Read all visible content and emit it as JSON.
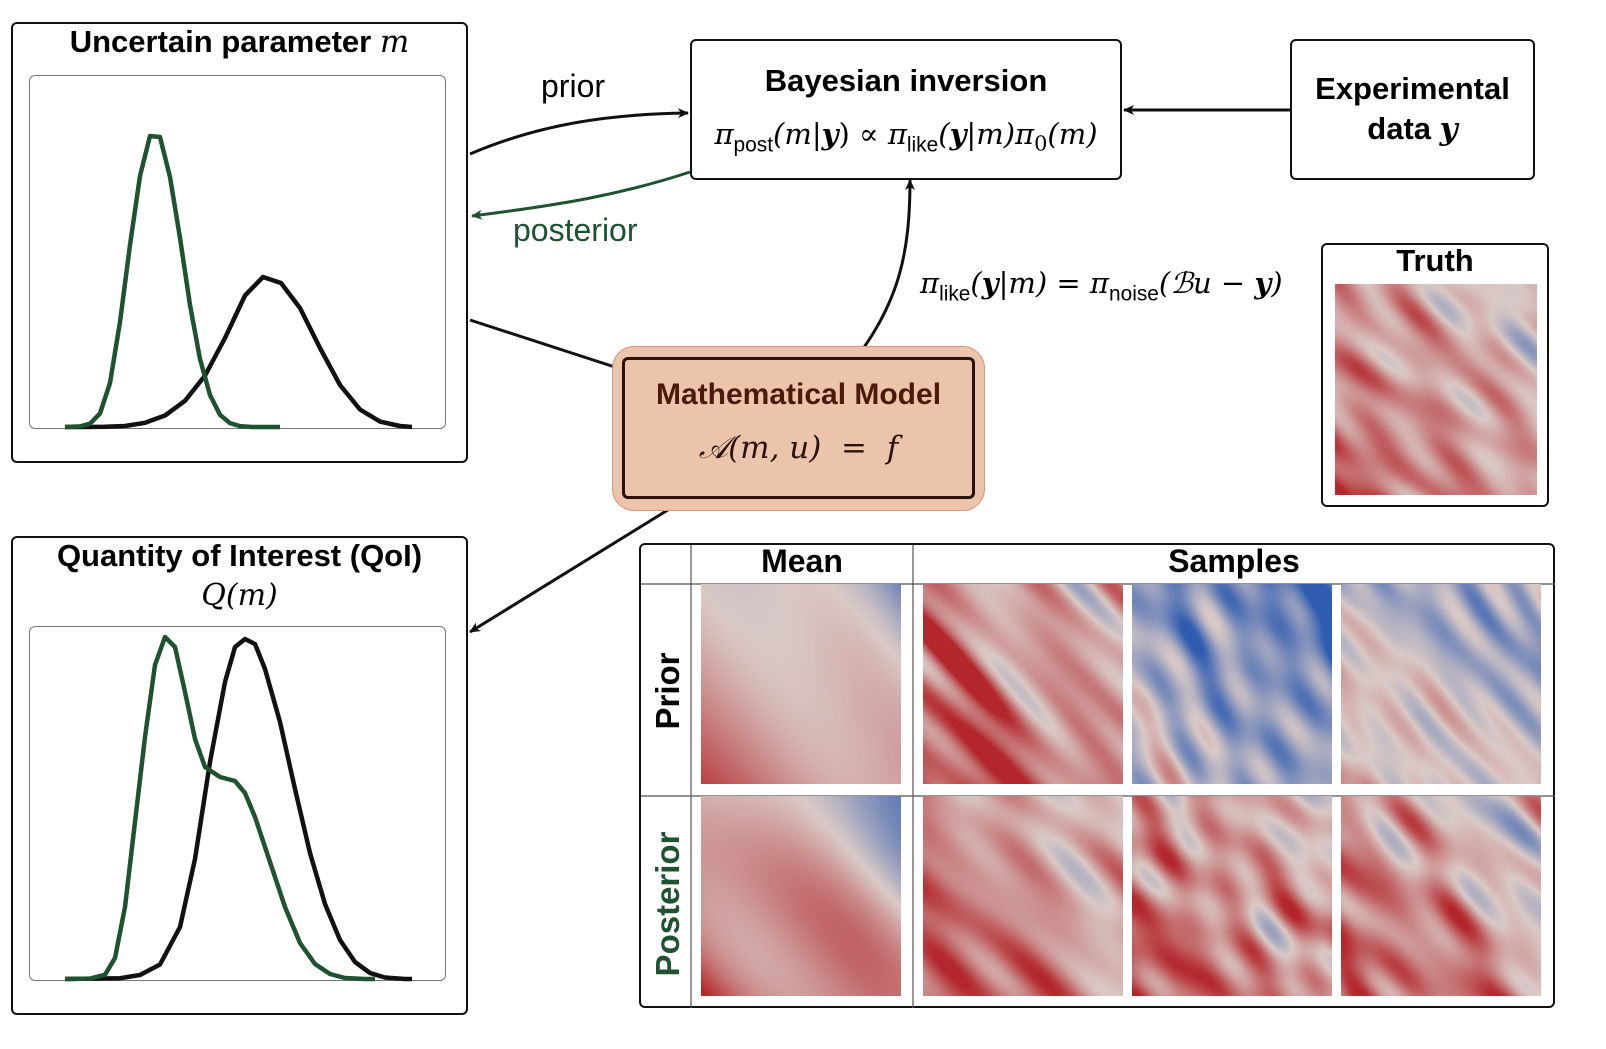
{
  "uncertain_panel": {
    "title_text": "Uncertain parameter",
    "title_symbol": "m"
  },
  "qoi_panel": {
    "title_text": "Quantity of Interest (QoI)",
    "subtitle": "Q(m)"
  },
  "bayes_box": {
    "title": "Bayesian inversion",
    "formula": {
      "pi1": "π",
      "sub1": "post",
      "a1": "(m|",
      "y1": "y",
      "b1": ") ∝ ",
      "pi2": "π",
      "sub2": "like",
      "a2": "(",
      "y2": "y",
      "b2": "|m)π",
      "sub3": "0",
      "c3": "(m)"
    }
  },
  "experimental_box": {
    "line1": "Experimental",
    "line2": "data",
    "symbol": "y"
  },
  "model_box": {
    "title": "Mathematical Model",
    "equation": "𝒜(m, u)  =  f"
  },
  "likelihood_formula": {
    "pi1": "π",
    "sub1": "like",
    "a1": "(",
    "y1": "y",
    "b1": "|m) = π",
    "sub2": "noise",
    "c2": "(ℬu − ",
    "y2": "y",
    "d2": ")"
  },
  "edge_labels": {
    "prior": "prior",
    "posterior": "posterior"
  },
  "truth_panel": {
    "title": "Truth"
  },
  "grid": {
    "col_mean": "Mean",
    "col_samples": "Samples",
    "row_prior": "Prior",
    "row_posterior": "Posterior"
  },
  "colors": {
    "posterior_green": "#1f5230",
    "prior_black": "#111111",
    "model_fill": "#ecc3ab",
    "model_text": "#4a1a0a",
    "field_red": "#b3262b",
    "field_blue": "#2f5cb0",
    "field_mid": "#d9c9c6"
  }
}
